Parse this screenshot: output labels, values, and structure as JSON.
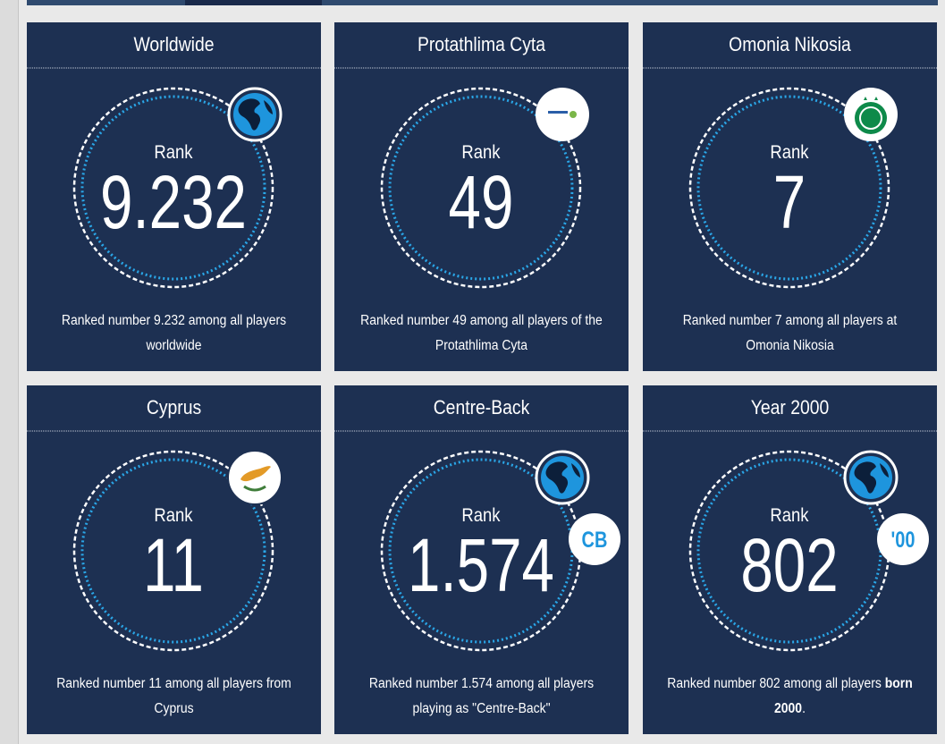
{
  "cards": [
    {
      "title": "Worldwide",
      "rank_label": "Rank",
      "rank": "9.232",
      "badge": "globe",
      "description": [
        [
          "Ranked number 9.232 among all players"
        ],
        [
          "worldwide"
        ]
      ]
    },
    {
      "title": "Protathlima Cyta",
      "rank_label": "Rank",
      "rank": "49",
      "badge": "league",
      "description": [
        [
          "Ranked number 49 among all players of the"
        ],
        [
          "Protathlima Cyta"
        ]
      ]
    },
    {
      "title": "Omonia Nikosia",
      "rank_label": "Rank",
      "rank": "7",
      "badge": "club",
      "description": [
        [
          "Ranked number 7 among all players at"
        ],
        [
          "Omonia Nikosia"
        ]
      ]
    },
    {
      "title": "Cyprus",
      "rank_label": "Rank",
      "rank": "11",
      "badge": "flag",
      "description": [
        [
          "Ranked number 11 among all players from"
        ],
        [
          "Cyprus"
        ]
      ]
    },
    {
      "title": "Centre-Back",
      "rank_label": "Rank",
      "rank": "1.574",
      "badge": "globe",
      "tag": "CB",
      "description": [
        [
          "Ranked number 1.574 among all players"
        ],
        [
          "playing as \"Centre-Back\""
        ]
      ]
    },
    {
      "title": "Year 2000",
      "rank_label": "Rank",
      "rank": "802",
      "badge": "globe",
      "tag": "'00",
      "description": [
        [
          "Ranked number 802 among all players ",
          {
            "bold": "born"
          }
        ],
        [
          {
            "bold": "2000"
          },
          "."
        ]
      ]
    }
  ]
}
